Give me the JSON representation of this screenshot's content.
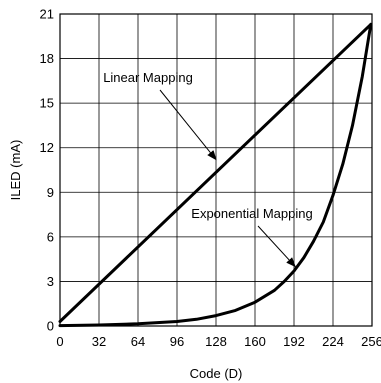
{
  "chart_data": {
    "type": "line",
    "xlabel": "Code (D)",
    "ylabel": "ILED (mA)",
    "xlim": [
      0,
      256
    ],
    "ylim": [
      0,
      21
    ],
    "xticks": [
      0,
      32,
      64,
      96,
      128,
      160,
      192,
      224,
      256
    ],
    "yticks": [
      0,
      3,
      6,
      9,
      12,
      15,
      18,
      21
    ],
    "grid": true,
    "series": [
      {
        "name": "Linear Mapping",
        "x": [
          0,
          255
        ],
        "y": [
          0.3,
          20.3
        ]
      },
      {
        "name": "Exponential Mapping",
        "x": [
          0,
          32,
          64,
          96,
          112,
          128,
          144,
          160,
          176,
          184,
          192,
          200,
          208,
          216,
          224,
          232,
          240,
          248,
          255
        ],
        "y": [
          0.03,
          0.07,
          0.15,
          0.3,
          0.45,
          0.7,
          1.05,
          1.6,
          2.4,
          3.0,
          3.7,
          4.6,
          5.7,
          7.0,
          8.8,
          10.9,
          13.5,
          16.8,
          20.3
        ]
      }
    ],
    "annotations": [
      {
        "text": "Linear Mapping",
        "arrow_to": [
          128,
          11.2
        ]
      },
      {
        "text": "Exponential Mapping",
        "arrow_to": [
          193,
          4.0
        ]
      }
    ]
  }
}
